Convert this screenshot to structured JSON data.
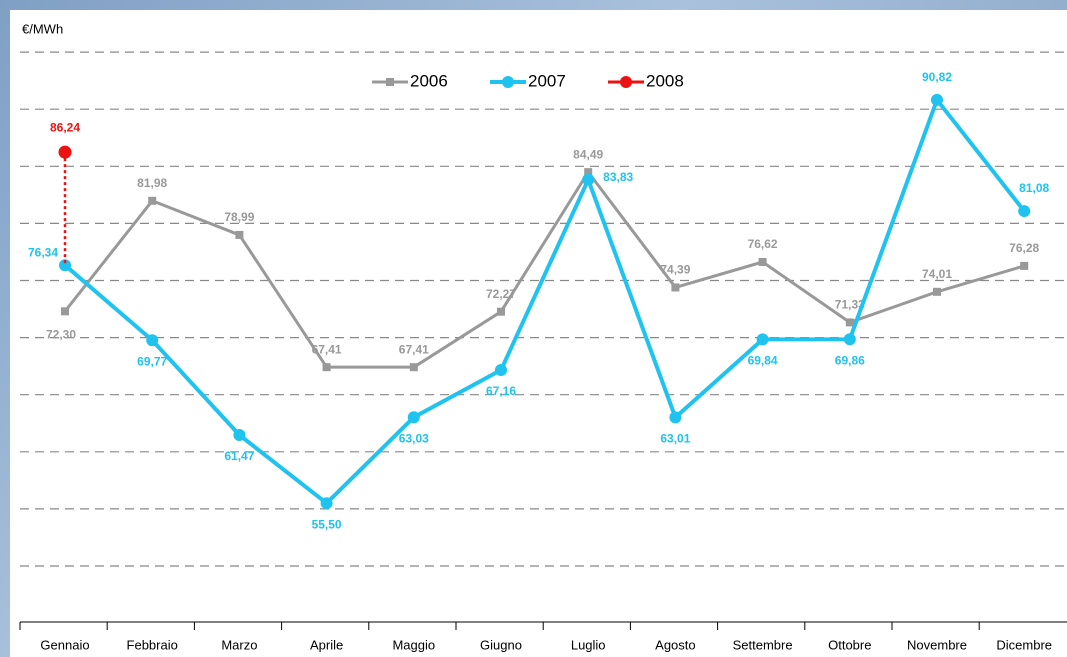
{
  "chart_data": {
    "type": "line",
    "y_label": "€/MWh",
    "categories": [
      "Gennaio",
      "Febbraio",
      "Marzo",
      "Aprile",
      "Maggio",
      "Giugno",
      "Luglio",
      "Agosto",
      "Settembre",
      "Ottobre",
      "Novembre",
      "Dicembre"
    ],
    "series": [
      {
        "name": "2006",
        "color": "#999999",
        "values": [
          72.3,
          81.98,
          78.99,
          67.41,
          67.41,
          72.27,
          84.49,
          74.39,
          76.62,
          71.33,
          74.01,
          76.28
        ],
        "value_labels": [
          "72,30",
          "81,98",
          "78,99",
          "67,41",
          "67,41",
          "72,27",
          "84,49",
          "74,39",
          "76,62",
          "71,33",
          "74,01",
          "76,28"
        ]
      },
      {
        "name": "2007",
        "color": "#1ec3ef",
        "values": [
          76.34,
          69.77,
          61.47,
          55.5,
          63.03,
          67.16,
          83.83,
          63.01,
          69.84,
          69.86,
          90.82,
          81.08
        ],
        "value_labels": [
          "76,34",
          "69,77",
          "61,47",
          "55,50",
          "63,03",
          "67,16",
          "83,83",
          "63,01",
          "69,84",
          "69,86",
          "90,82",
          "81,08"
        ]
      },
      {
        "name": "2008",
        "color": "#ee1111",
        "values": [
          86.24,
          null,
          null,
          null,
          null,
          null,
          null,
          null,
          null,
          null,
          null,
          null
        ],
        "value_labels": [
          "86,24",
          null,
          null,
          null,
          null,
          null,
          null,
          null,
          null,
          null,
          null,
          null
        ]
      }
    ],
    "ylim": [
      45,
      95
    ],
    "yticks": [
      50,
      55,
      60,
      65,
      70,
      75,
      80,
      85,
      90,
      95
    ],
    "grid": true,
    "legend": "top"
  }
}
